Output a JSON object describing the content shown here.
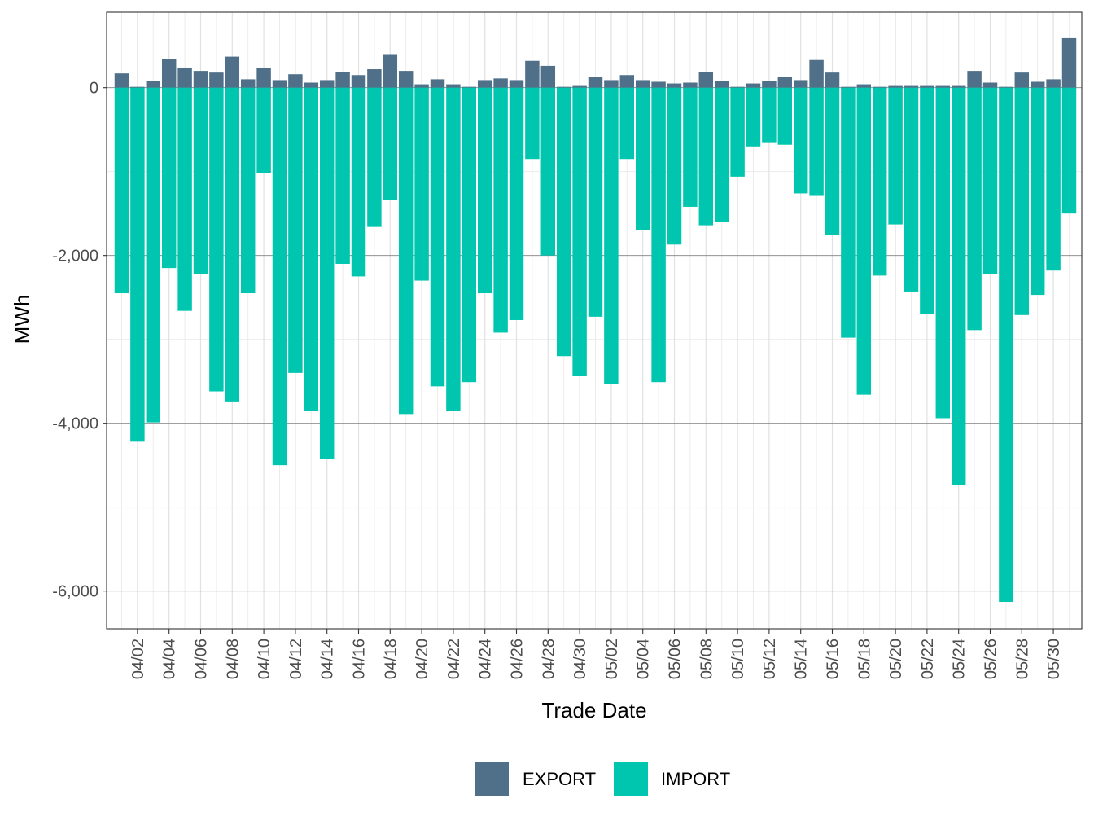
{
  "chart_data": {
    "type": "bar",
    "stacking": "diverging",
    "xlabel": "Trade Date",
    "ylabel": "MWh",
    "ylim": [
      -6450,
      900
    ],
    "y_ticks": [
      0,
      -2000,
      -4000,
      -6000
    ],
    "y_tick_labels": [
      "0",
      "-2,000",
      "-4,000",
      "-6,000"
    ],
    "x_tick_labels": [
      "04/02",
      "04/04",
      "04/06",
      "04/08",
      "04/10",
      "04/12",
      "04/14",
      "04/16",
      "04/18",
      "04/20",
      "04/22",
      "04/24",
      "04/26",
      "04/28",
      "04/30",
      "05/02",
      "05/04",
      "05/06",
      "05/08",
      "05/10",
      "05/12",
      "05/14",
      "05/16",
      "05/18",
      "05/20",
      "05/22",
      "05/24",
      "05/26",
      "05/28",
      "05/30"
    ],
    "categories": [
      "04/01",
      "04/02",
      "04/03",
      "04/04",
      "04/05",
      "04/06",
      "04/07",
      "04/08",
      "04/09",
      "04/10",
      "04/11",
      "04/12",
      "04/13",
      "04/14",
      "04/15",
      "04/16",
      "04/17",
      "04/18",
      "04/19",
      "04/20",
      "04/21",
      "04/22",
      "04/23",
      "04/24",
      "04/25",
      "04/26",
      "04/27",
      "04/28",
      "04/29",
      "04/30",
      "05/01",
      "05/02",
      "05/03",
      "05/04",
      "05/05",
      "05/06",
      "05/07",
      "05/08",
      "05/09",
      "05/10",
      "05/11",
      "05/12",
      "05/13",
      "05/14",
      "05/15",
      "05/16",
      "05/17",
      "05/18",
      "05/19",
      "05/20",
      "05/21",
      "05/22",
      "05/23",
      "05/24",
      "05/25",
      "05/26",
      "05/27",
      "05/28",
      "05/29",
      "05/30",
      "05/31"
    ],
    "legend": {
      "position": "bottom",
      "items": [
        {
          "label": "EXPORT",
          "color": "#4f7088"
        },
        {
          "label": "IMPORT",
          "color": "#00c6b0"
        }
      ]
    },
    "series": [
      {
        "name": "EXPORT",
        "color": "#4f7088",
        "values": [
          170,
          10,
          80,
          340,
          240,
          200,
          180,
          370,
          100,
          240,
          90,
          160,
          60,
          90,
          190,
          150,
          220,
          400,
          200,
          40,
          100,
          40,
          10,
          90,
          110,
          90,
          320,
          260,
          10,
          30,
          130,
          90,
          150,
          90,
          70,
          50,
          60,
          190,
          80,
          10,
          50,
          80,
          130,
          90,
          330,
          180,
          10,
          40,
          10,
          30,
          30,
          30,
          30,
          30,
          200,
          60,
          10,
          180,
          70,
          100,
          590
        ]
      },
      {
        "name": "IMPORT",
        "color": "#00c6b0",
        "values": [
          -2450,
          -4220,
          -3990,
          -2150,
          -2660,
          -2220,
          -3620,
          -3740,
          -2450,
          -1020,
          -4500,
          -3400,
          -3850,
          -4430,
          -2100,
          -2250,
          -1660,
          -1340,
          -3890,
          -2300,
          -3560,
          -3850,
          -3510,
          -2450,
          -2920,
          -2770,
          -850,
          -2000,
          -3200,
          -3440,
          -2730,
          -3530,
          -850,
          -1700,
          -3510,
          -1870,
          -1420,
          -1640,
          -1600,
          -1060,
          -700,
          -650,
          -680,
          -1260,
          -1290,
          -1760,
          -2980,
          -3660,
          -2240,
          -1630,
          -2430,
          -2700,
          -3940,
          -4740,
          -2890,
          -2220,
          -6130,
          -2710,
          -2470,
          -2180,
          -1500
        ]
      }
    ]
  }
}
